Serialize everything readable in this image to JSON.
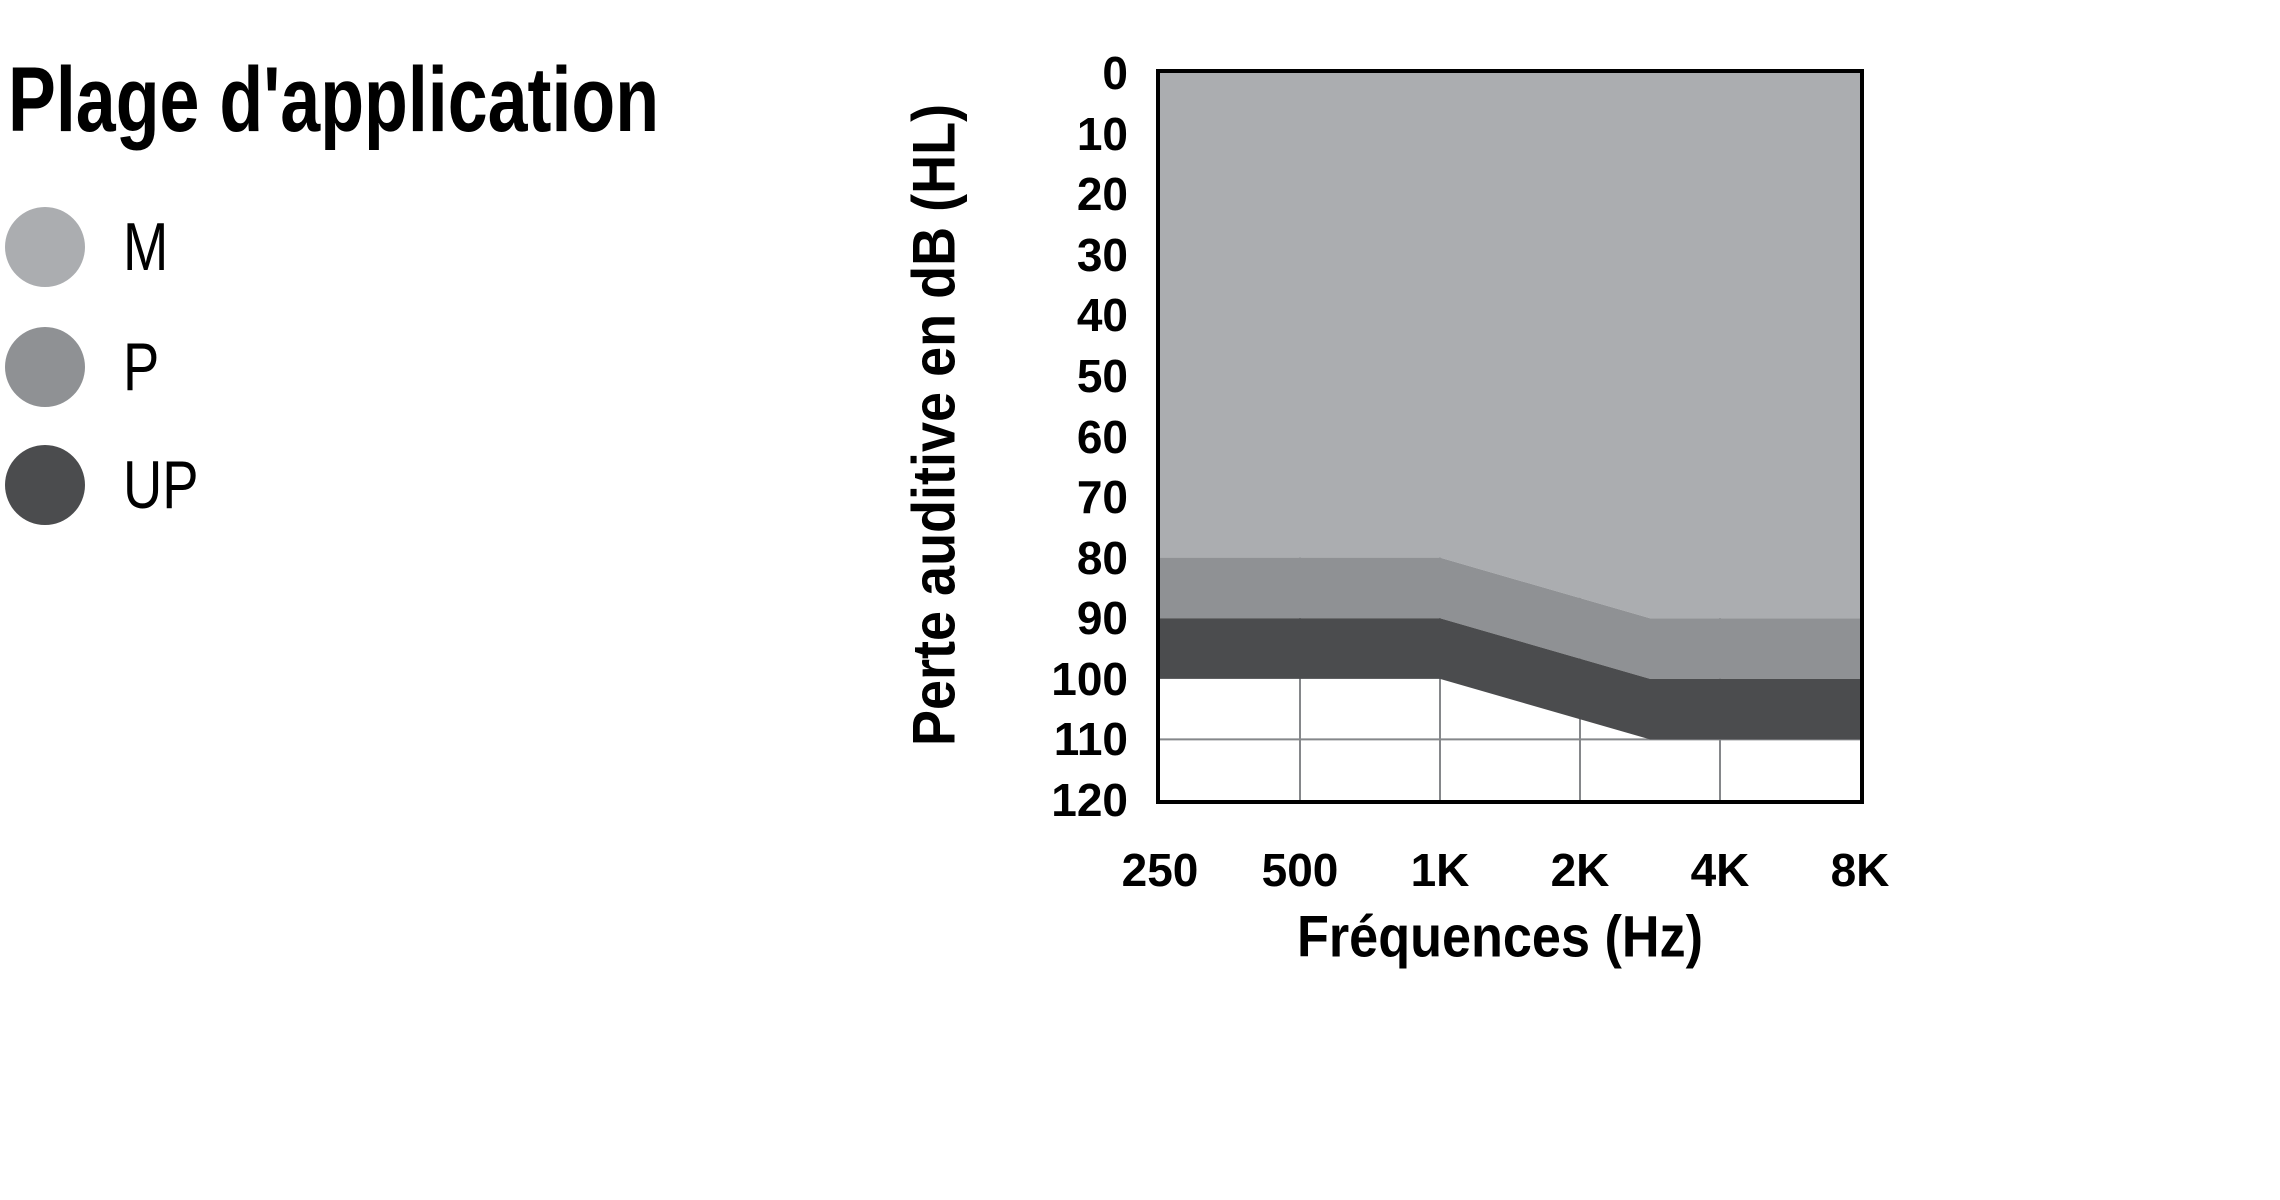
{
  "legend": {
    "title": "Plage d'application",
    "items": [
      {
        "label": "M",
        "color": "#ABADB0"
      },
      {
        "label": "P",
        "color": "#8F9194"
      },
      {
        "label": "UP",
        "color": "#4B4C4E"
      }
    ]
  },
  "chart_data": {
    "type": "area",
    "title": "Plage d'application",
    "xlabel": "Fréquences (Hz)",
    "ylabel": "Perte auditive en dB (HL)",
    "x_tick_labels": [
      "250",
      "500",
      "1K",
      "2K",
      "4K",
      "8K"
    ],
    "y_ticks": [
      0,
      10,
      20,
      30,
      40,
      50,
      60,
      70,
      80,
      90,
      100,
      110,
      120
    ],
    "ylim": [
      0,
      120
    ],
    "y_axis_direction": "downward",
    "x_breakpoints_units": [
      0,
      2,
      3.5,
      5
    ],
    "x_breakpoints_freq": [
      "250",
      "1K",
      "3K",
      "8K"
    ],
    "series": [
      {
        "name": "M",
        "color": "#ABADB0",
        "top_dB": [
          0,
          0,
          0,
          0
        ],
        "bottom_dB": [
          80,
          80,
          90,
          90
        ]
      },
      {
        "name": "P",
        "color": "#8F9194",
        "top_dB": [
          80,
          80,
          90,
          90
        ],
        "bottom_dB": [
          90,
          90,
          100,
          100
        ]
      },
      {
        "name": "UP",
        "color": "#4B4C4E",
        "top_dB": [
          90,
          90,
          100,
          100
        ],
        "bottom_dB": [
          100,
          100,
          110,
          110
        ]
      }
    ],
    "grid": {
      "vertical_x_units": [
        1,
        2,
        3,
        4
      ],
      "horizontal_dB": [
        110
      ],
      "color": "#85878A"
    },
    "frame_color": "#000000",
    "background": "#FFFFFF",
    "legend_position": "left"
  }
}
